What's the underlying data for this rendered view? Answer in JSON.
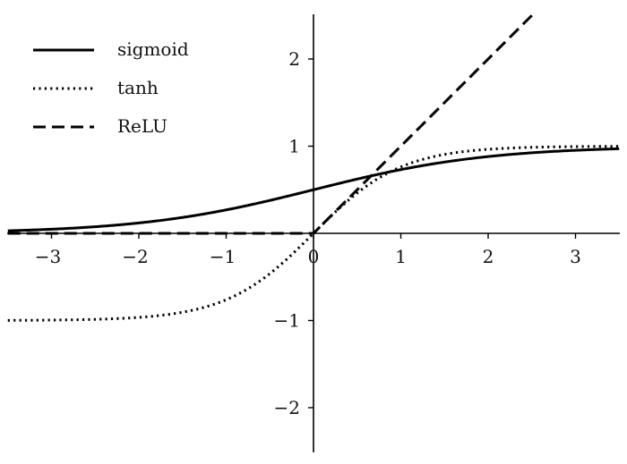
{
  "chart_data": {
    "type": "line",
    "title": "",
    "xlabel": "",
    "ylabel": "",
    "xlim": [
      -3.5,
      3.5
    ],
    "ylim": [
      -2.5,
      2.5
    ],
    "x_ticks": [
      -3,
      -2,
      -1,
      0,
      1,
      2,
      3
    ],
    "y_ticks": [
      -2,
      -1,
      1,
      2
    ],
    "x_tick_labels": [
      "−3",
      "−2",
      "−1",
      "0",
      "1",
      "2",
      "3"
    ],
    "y_tick_labels": [
      "−2",
      "−1",
      "1",
      "2"
    ],
    "grid": false,
    "legend_position": "top-left",
    "series": [
      {
        "name": "sigmoid",
        "style": "solid",
        "color": "#000000",
        "function": "1/(1+exp(-x))",
        "x": [
          -3.5,
          -3,
          -2,
          -1,
          0,
          0.5,
          1,
          2,
          3,
          3.5
        ],
        "y": [
          0.029,
          0.047,
          0.119,
          0.269,
          0.5,
          0.622,
          0.731,
          0.881,
          0.953,
          0.971
        ]
      },
      {
        "name": "tanh",
        "style": "dotted",
        "color": "#000000",
        "function": "tanh(x)",
        "x": [
          -3.5,
          -3,
          -2,
          -1,
          0,
          0.5,
          1,
          2,
          3,
          3.5
        ],
        "y": [
          -0.998,
          -0.995,
          -0.964,
          -0.762,
          0,
          0.462,
          0.762,
          0.964,
          0.995,
          0.998
        ]
      },
      {
        "name": "ReLU",
        "style": "dashed",
        "color": "#000000",
        "function": "max(0,x)",
        "x": [
          -3.5,
          0,
          2.5
        ],
        "y": [
          0,
          0,
          2.5
        ]
      }
    ]
  }
}
